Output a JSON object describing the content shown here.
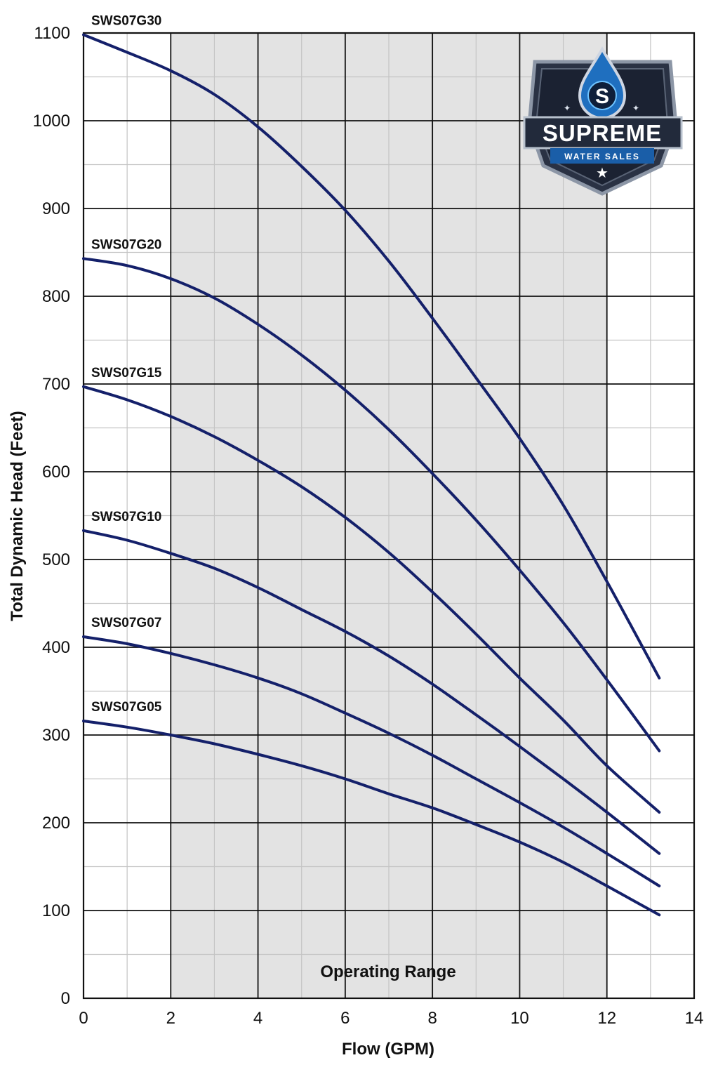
{
  "logo": {
    "name": "SUPREME",
    "tagline": "WATER SALES",
    "monogram": "S",
    "icon": "water-drop-shield-icon"
  },
  "colors": {
    "curve": "#14206a",
    "operating_band": "#e3e3e3",
    "grid_major": "#111111",
    "grid_minor": "#c4c4c4"
  },
  "chart_data": {
    "type": "line",
    "title": "",
    "xlabel": "Flow (GPM)",
    "ylabel": "Total Dynamic Head (Feet)",
    "xlim": [
      0,
      14
    ],
    "ylim": [
      0,
      1100
    ],
    "x_ticks": [
      "0",
      "2",
      "4",
      "6",
      "8",
      "10",
      "12",
      "14"
    ],
    "y_ticks": [
      "0",
      "100",
      "200",
      "300",
      "400",
      "500",
      "600",
      "700",
      "800",
      "900",
      "1000",
      "1100"
    ],
    "grid": true,
    "shaded_region": {
      "label": "Operating Range",
      "x": [
        2,
        12
      ]
    },
    "series": [
      {
        "name": "SWS07G30",
        "points": [
          [
            0,
            1098
          ],
          [
            1,
            1078
          ],
          [
            2,
            1057
          ],
          [
            3,
            1030
          ],
          [
            4,
            993
          ],
          [
            5,
            948
          ],
          [
            6,
            898
          ],
          [
            7,
            840
          ],
          [
            8,
            775
          ],
          [
            9,
            707
          ],
          [
            10,
            638
          ],
          [
            11,
            562
          ],
          [
            12,
            475
          ],
          [
            13.2,
            365
          ]
        ]
      },
      {
        "name": "SWS07G20",
        "points": [
          [
            0,
            843
          ],
          [
            1,
            835
          ],
          [
            2,
            820
          ],
          [
            3,
            798
          ],
          [
            4,
            768
          ],
          [
            5,
            733
          ],
          [
            6,
            693
          ],
          [
            7,
            648
          ],
          [
            8,
            598
          ],
          [
            9,
            545
          ],
          [
            10,
            488
          ],
          [
            11,
            428
          ],
          [
            12,
            363
          ],
          [
            13.2,
            282
          ]
        ]
      },
      {
        "name": "SWS07G15",
        "points": [
          [
            0,
            697
          ],
          [
            1,
            682
          ],
          [
            2,
            663
          ],
          [
            3,
            640
          ],
          [
            4,
            613
          ],
          [
            5,
            583
          ],
          [
            6,
            548
          ],
          [
            7,
            508
          ],
          [
            8,
            463
          ],
          [
            9,
            415
          ],
          [
            10,
            365
          ],
          [
            11,
            317
          ],
          [
            12,
            265
          ],
          [
            13.2,
            212
          ]
        ]
      },
      {
        "name": "SWS07G10",
        "points": [
          [
            0,
            533
          ],
          [
            1,
            522
          ],
          [
            2,
            507
          ],
          [
            3,
            490
          ],
          [
            4,
            468
          ],
          [
            5,
            443
          ],
          [
            6,
            418
          ],
          [
            7,
            390
          ],
          [
            8,
            358
          ],
          [
            9,
            323
          ],
          [
            10,
            287
          ],
          [
            11,
            250
          ],
          [
            12,
            212
          ],
          [
            13.2,
            165
          ]
        ]
      },
      {
        "name": "SWS07G07",
        "points": [
          [
            0,
            412
          ],
          [
            1,
            404
          ],
          [
            2,
            393
          ],
          [
            3,
            380
          ],
          [
            4,
            365
          ],
          [
            5,
            347
          ],
          [
            6,
            325
          ],
          [
            7,
            302
          ],
          [
            8,
            277
          ],
          [
            9,
            250
          ],
          [
            10,
            223
          ],
          [
            11,
            195
          ],
          [
            12,
            165
          ],
          [
            13.2,
            128
          ]
        ]
      },
      {
        "name": "SWS07G05",
        "points": [
          [
            0,
            316
          ],
          [
            1,
            309
          ],
          [
            2,
            300
          ],
          [
            3,
            290
          ],
          [
            4,
            278
          ],
          [
            5,
            265
          ],
          [
            6,
            250
          ],
          [
            7,
            233
          ],
          [
            8,
            217
          ],
          [
            9,
            198
          ],
          [
            10,
            178
          ],
          [
            11,
            155
          ],
          [
            12,
            128
          ],
          [
            13.2,
            95
          ]
        ]
      }
    ]
  }
}
